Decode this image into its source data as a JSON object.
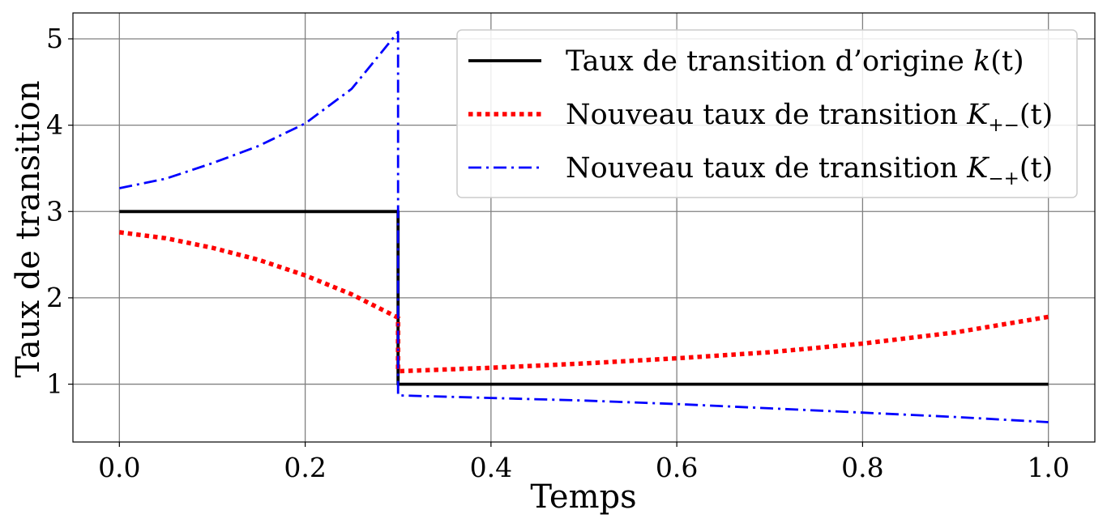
{
  "chart_data": {
    "type": "line",
    "xlabel": "Temps",
    "ylabel": "Taux de transition",
    "xlim": [
      -0.05,
      1.05
    ],
    "ylim": [
      0.33,
      5.3
    ],
    "xticks": [
      0.0,
      0.2,
      0.4,
      0.6,
      0.8,
      1.0
    ],
    "xtick_labels": [
      "0.0",
      "0.2",
      "0.4",
      "0.6",
      "0.8",
      "1.0"
    ],
    "yticks": [
      1,
      2,
      3,
      4,
      5
    ],
    "ytick_labels": [
      "1",
      "2",
      "3",
      "4",
      "5"
    ],
    "grid": true,
    "legend_position": "top-right",
    "series": [
      {
        "name": "Taux de transition d’origine k(t)",
        "legend_text": "Taux de transition d’origine ",
        "legend_math": "k",
        "legend_sub": "",
        "legend_tail": "(t)",
        "color": "#000000",
        "style": "solid",
        "x": [
          0.0,
          0.3,
          0.3,
          1.0
        ],
        "y": [
          3.0,
          3.0,
          1.0,
          1.0
        ]
      },
      {
        "name": "Nouveau taux de transition K+−(t)",
        "legend_text": "Nouveau taux de transition ",
        "legend_math": "K",
        "legend_sub": "+−",
        "legend_tail": "(t)",
        "color": "#ff0000",
        "style": "dotted",
        "x": [
          0.0,
          0.05,
          0.1,
          0.15,
          0.2,
          0.25,
          0.3,
          0.3,
          0.4,
          0.5,
          0.6,
          0.7,
          0.8,
          0.9,
          1.0
        ],
        "y": [
          2.76,
          2.69,
          2.58,
          2.44,
          2.26,
          2.04,
          1.77,
          1.15,
          1.19,
          1.24,
          1.3,
          1.37,
          1.47,
          1.6,
          1.78
        ]
      },
      {
        "name": "Nouveau taux de transition K−+(t)",
        "legend_text": "Nouveau taux de transition ",
        "legend_math": "K",
        "legend_sub": "−+",
        "legend_tail": "(t)",
        "color": "#0000ff",
        "style": "dashdot",
        "x": [
          0.0,
          0.05,
          0.1,
          0.15,
          0.2,
          0.25,
          0.3,
          0.3,
          0.4,
          0.5,
          0.6,
          0.7,
          0.8,
          0.9,
          1.0
        ],
        "y": [
          3.27,
          3.38,
          3.56,
          3.76,
          4.02,
          4.42,
          5.08,
          0.87,
          0.84,
          0.81,
          0.77,
          0.72,
          0.67,
          0.62,
          0.56
        ]
      }
    ]
  }
}
